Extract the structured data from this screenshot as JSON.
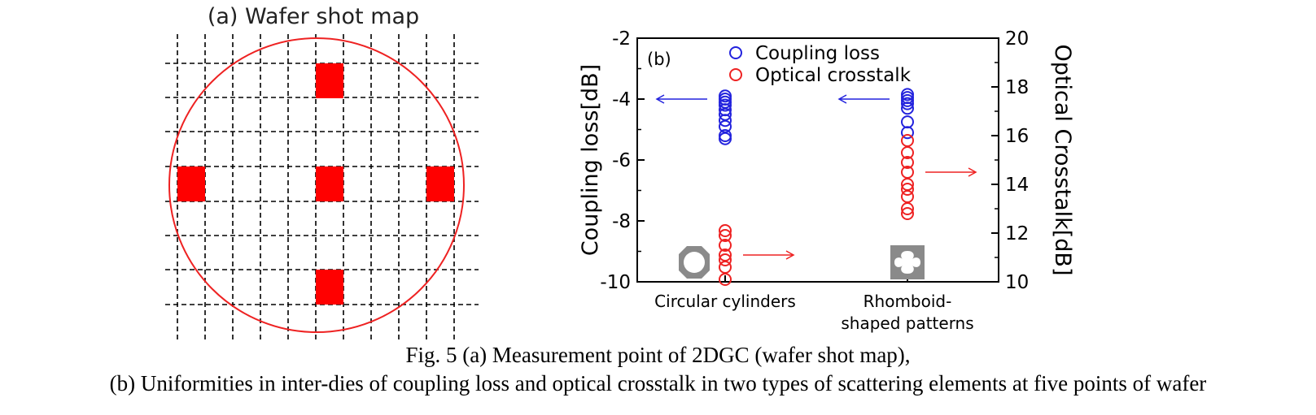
{
  "panel_a": {
    "title": "(a) Wafer shot map",
    "colors": {
      "wafer": "#ee2222",
      "shot": "#ff0000",
      "grid": "#000000"
    },
    "measured_shots": [
      {
        "col": 4,
        "row": 1
      },
      {
        "col": 1,
        "row": 4
      },
      {
        "col": 4,
        "row": 4
      },
      {
        "col": 7,
        "row": 4
      },
      {
        "col": 4,
        "row": 7
      }
    ]
  },
  "chart_data": {
    "type": "scatter",
    "panel_label": "(b)",
    "categories": [
      "Circular cylinders",
      "Rhomboid-\nshaped patterns"
    ],
    "category_labels": [
      [
        "Circular cylinders"
      ],
      [
        "Rhomboid-",
        "shaped patterns"
      ]
    ],
    "ylabel": "Coupling loss[dB]",
    "ylim": [
      -10,
      -2
    ],
    "yticks": [
      -10,
      -8,
      -6,
      -4,
      -2
    ],
    "y2label": "Optical Crosstalk[dB]",
    "y2lim": [
      10,
      20
    ],
    "y2ticks": [
      10,
      12,
      14,
      16,
      18,
      20
    ],
    "legend_position": "top-center",
    "grid": false,
    "series": [
      {
        "name": "Coupling loss",
        "color": "#2222dd",
        "axis": "left",
        "points": [
          {
            "category": 0,
            "values": [
              -3.9,
              -4.0,
              -4.1,
              -4.2,
              -4.35,
              -4.5,
              -4.7,
              -4.9,
              -5.2,
              -5.3
            ]
          },
          {
            "category": 1,
            "values": [
              -3.85,
              -3.95,
              -4.05,
              -4.15,
              -4.3,
              -4.75,
              -5.1
            ]
          }
        ]
      },
      {
        "name": "Optical crosstalk",
        "color": "#ee2222",
        "axis": "right",
        "points": [
          {
            "category": 0,
            "values": [
              10.1,
              10.6,
              10.9,
              11.1,
              11.5,
              11.9,
              12.1
            ]
          },
          {
            "category": 1,
            "values": [
              12.8,
              13.0,
              13.5,
              13.8,
              14.0,
              14.5,
              14.9,
              15.3,
              15.8
            ]
          }
        ]
      }
    ],
    "annotations": [
      {
        "type": "arrow",
        "direction": "left",
        "color": "#2222dd",
        "axis": "left",
        "category": 0,
        "y": -4.0
      },
      {
        "type": "arrow",
        "direction": "right",
        "color": "#ee2222",
        "axis": "right",
        "category": 0,
        "y": 11.1
      },
      {
        "type": "arrow",
        "direction": "left",
        "color": "#2222dd",
        "axis": "left",
        "category": 1,
        "y": -4.0
      },
      {
        "type": "arrow",
        "direction": "right",
        "color": "#ee2222",
        "axis": "right",
        "category": 1,
        "y": 14.5
      }
    ]
  },
  "caption": {
    "line1": "Fig. 5 (a) Measurement point of 2DGC (wafer shot map),",
    "line2": "(b) Uniformities in inter-dies of coupling loss and optical crosstalk in two types of scattering elements at five points of wafer"
  }
}
